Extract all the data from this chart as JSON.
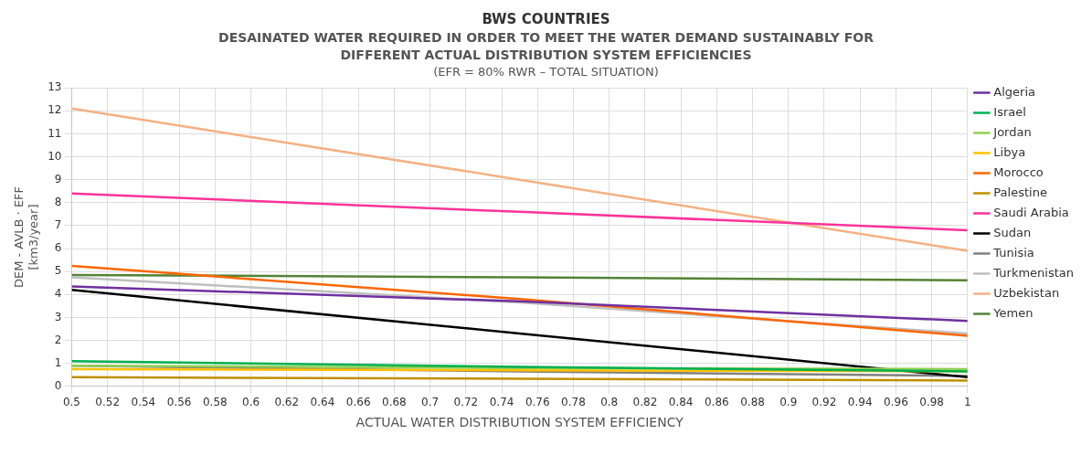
{
  "chart_data": {
    "type": "line",
    "title": "BWS COUNTRIES",
    "subtitle": "DESAINATED WATER REQUIRED IN ORDER TO MEET THE WATER DEMAND SUSTAINABLY FOR DIFFERENT ACTUAL DISTRIBUTION SYSTEM EFFICIENCIES",
    "annotations": [
      "(EFR = 80% RWR – TOTAL SITUATION)"
    ],
    "xlabel": "ACTUAL WATER DISTRIBUTION SYSTEM EFFICIENCY",
    "ylabel": "DEM - AVLB · EFF\n[km3/year]",
    "x": [
      0.5,
      0.75,
      1
    ],
    "series": [
      {
        "name": "Algeria",
        "color": "#7030a0",
        "values": [
          4.35,
          3.7,
          2.85
        ]
      },
      {
        "name": "Israel",
        "color": "#00b050",
        "values": [
          1.1,
          0.85,
          0.65
        ]
      },
      {
        "name": "Jordan",
        "color": "#92d050",
        "values": [
          0.9,
          0.8,
          0.75
        ]
      },
      {
        "name": "Libya",
        "color": "#ffc000",
        "values": [
          0.75,
          0.7,
          0.65
        ]
      },
      {
        "name": "Morocco",
        "color": "#ff6600",
        "values": [
          5.25,
          3.8,
          2.2
        ]
      },
      {
        "name": "Palestine",
        "color": "#bf9000",
        "values": [
          0.4,
          0.33,
          0.25
        ]
      },
      {
        "name": "Saudi Arabia",
        "color": "#ff3399",
        "values": [
          8.4,
          7.6,
          6.8
        ]
      },
      {
        "name": "Sudan",
        "color": "#000000",
        "values": [
          4.2,
          2.3,
          0.4
        ]
      },
      {
        "name": "Tunisia",
        "color": "#808080",
        "values": [
          0.9,
          0.65,
          0.45
        ]
      },
      {
        "name": "Turkmenistan",
        "color": "#bfbfbf",
        "values": [
          4.75,
          3.65,
          2.3
        ]
      },
      {
        "name": "Uzbekistan",
        "color": "#f4b183",
        "values": [
          12.1,
          9.0,
          5.9
        ]
      },
      {
        "name": "Yemen",
        "color": "#548235",
        "values": [
          4.85,
          4.75,
          4.62
        ]
      }
    ],
    "xlim": [
      0.5,
      1
    ],
    "xticks": [
      0.5,
      0.52,
      0.54,
      0.56,
      0.58,
      0.6,
      0.62,
      0.64,
      0.66,
      0.68,
      0.7,
      0.72,
      0.74,
      0.76,
      0.78,
      0.8,
      0.82,
      0.84,
      0.86,
      0.88,
      0.9,
      0.92,
      0.94,
      0.96,
      0.98,
      1
    ],
    "ylim": [
      0,
      13
    ],
    "yticks": [
      0,
      1,
      2,
      3,
      4,
      5,
      6,
      7,
      8,
      9,
      10,
      11,
      12,
      13
    ],
    "grid": true,
    "legend": "right",
    "marker": "none",
    "line_style": "solid"
  }
}
